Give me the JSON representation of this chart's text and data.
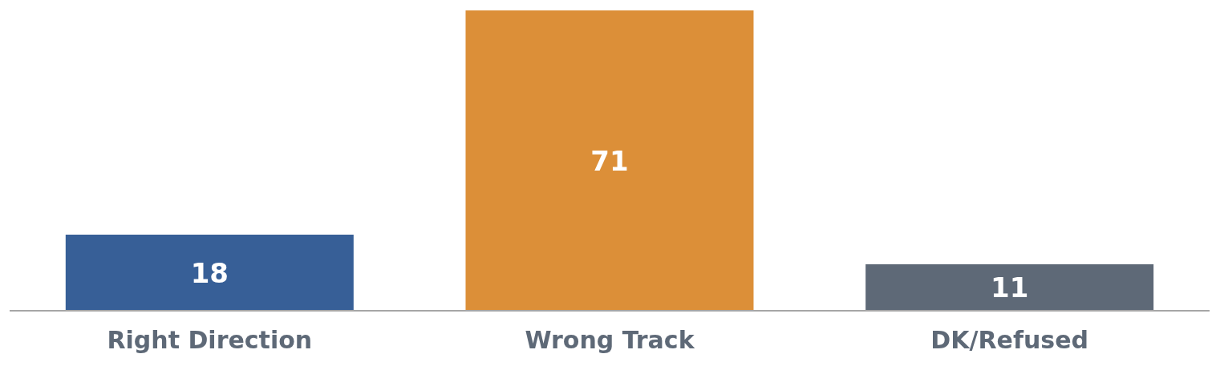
{
  "chart_data": {
    "type": "bar",
    "categories": [
      "Right Direction",
      "Wrong Track",
      "DK/Refused"
    ],
    "values": [
      18,
      71,
      11
    ],
    "colors": [
      "#375f97",
      "#dc8f38",
      "#5e6977"
    ],
    "data_labels": true
  }
}
